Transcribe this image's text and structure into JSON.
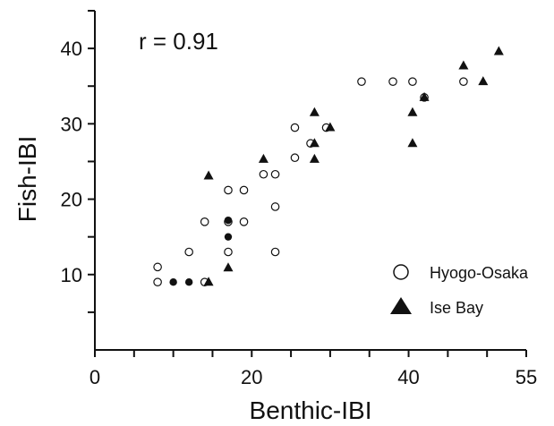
{
  "chart_data": {
    "type": "scatter",
    "title": "",
    "xlabel": "Benthic-IBI",
    "ylabel": "Fish-IBI",
    "xlim": [
      0,
      55
    ],
    "ylim": [
      0,
      45
    ],
    "xticks": [
      0,
      20,
      40,
      55
    ],
    "yticks": [
      10,
      20,
      30,
      40
    ],
    "annotation": "r = 0.91",
    "grid": false,
    "legend_position": "bottom-right",
    "legend": [
      "Hyogo-Osaka",
      "Ise Bay"
    ],
    "series": [
      {
        "name": "Hyogo-Osaka",
        "marker": "open-circle",
        "points": [
          [
            8,
            9
          ],
          [
            8,
            11
          ],
          [
            12,
            13
          ],
          [
            14,
            17
          ],
          [
            14,
            9
          ],
          [
            17,
            13
          ],
          [
            17,
            17
          ],
          [
            17,
            21.2
          ],
          [
            19,
            17
          ],
          [
            19,
            21.2
          ],
          [
            21.5,
            23.3
          ],
          [
            23,
            19
          ],
          [
            23,
            23.3
          ],
          [
            23,
            13
          ],
          [
            25.5,
            25.5
          ],
          [
            25.5,
            29.5
          ],
          [
            27.5,
            27.4
          ],
          [
            29.5,
            29.5
          ],
          [
            34,
            35.6
          ],
          [
            38,
            35.6
          ],
          [
            40.5,
            35.6
          ],
          [
            42,
            33.5
          ],
          [
            47,
            35.6
          ]
        ]
      },
      {
        "name": "Ise Bay",
        "marker": "filled-triangle",
        "points": [
          [
            14.5,
            9
          ],
          [
            14.5,
            23.1
          ],
          [
            17,
            10.9
          ],
          [
            21.5,
            25.3
          ],
          [
            28,
            31.5
          ],
          [
            28,
            25.3
          ],
          [
            28,
            27.4
          ],
          [
            30,
            29.5
          ],
          [
            40.5,
            31.5
          ],
          [
            40.5,
            27.4
          ],
          [
            42,
            33.5
          ],
          [
            47,
            37.7
          ],
          [
            49.5,
            35.6
          ],
          [
            51.5,
            39.6
          ]
        ]
      },
      {
        "name": "",
        "marker": "filled-circle",
        "points": [
          [
            10,
            9
          ],
          [
            12,
            9
          ],
          [
            17,
            15
          ],
          [
            17,
            17.2
          ]
        ]
      }
    ]
  }
}
